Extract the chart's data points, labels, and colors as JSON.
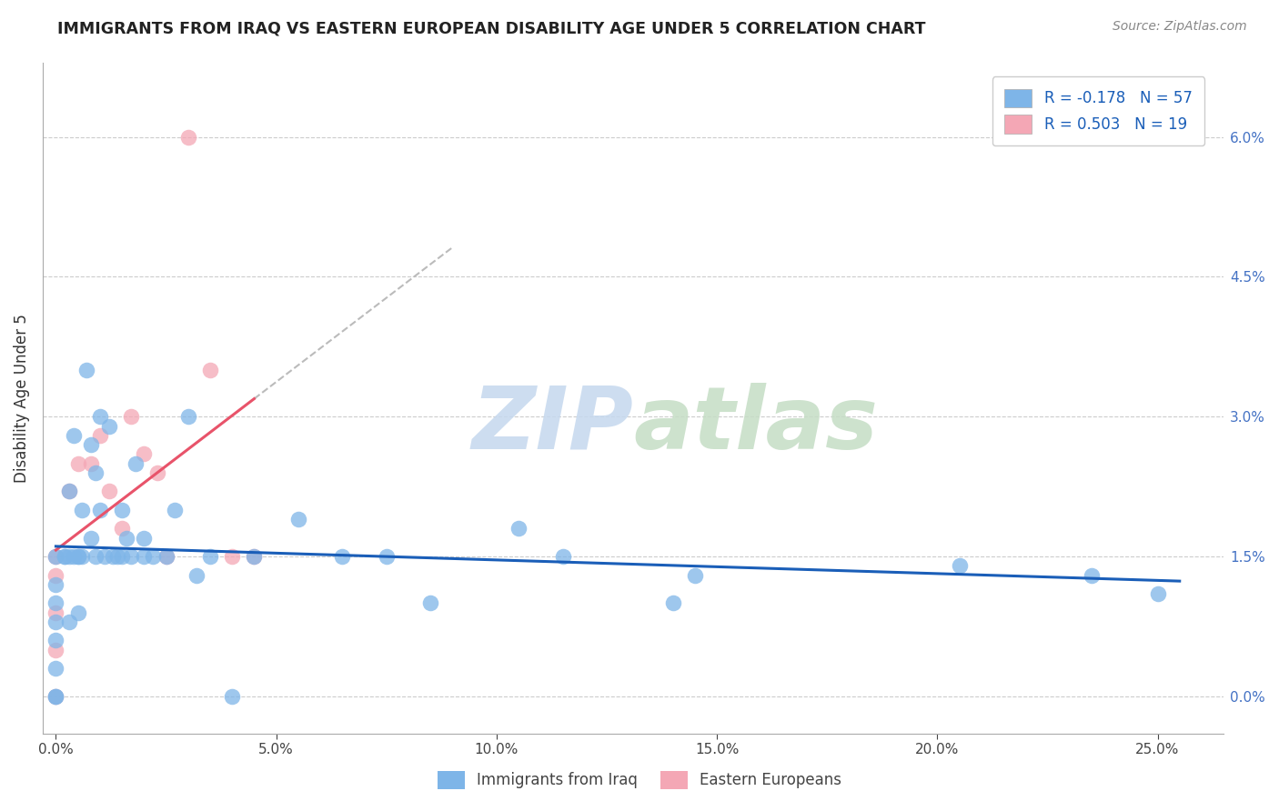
{
  "title": "IMMIGRANTS FROM IRAQ VS EASTERN EUROPEAN DISABILITY AGE UNDER 5 CORRELATION CHART",
  "source": "Source: ZipAtlas.com",
  "xlabel_vals": [
    0.0,
    5.0,
    10.0,
    15.0,
    20.0,
    25.0
  ],
  "ylabel_vals": [
    0.0,
    1.5,
    3.0,
    4.5,
    6.0
  ],
  "ylabel_label": "Disability Age Under 5",
  "xlim": [
    -0.3,
    26.5
  ],
  "ylim": [
    -0.4,
    6.8
  ],
  "iraq_R": -0.178,
  "iraq_N": 57,
  "ee_R": 0.503,
  "ee_N": 19,
  "iraq_color": "#7eb5e8",
  "ee_color": "#f4a7b5",
  "iraq_line_color": "#1a5eb8",
  "ee_line_color": "#e8536a",
  "iraq_x": [
    0.0,
    0.0,
    0.0,
    0.0,
    0.0,
    0.0,
    0.0,
    0.0,
    0.3,
    0.3,
    0.4,
    0.4,
    0.5,
    0.5,
    0.6,
    0.6,
    0.7,
    0.8,
    0.8,
    0.9,
    1.0,
    1.0,
    1.1,
    1.2,
    1.3,
    1.4,
    1.5,
    1.6,
    1.7,
    1.8,
    2.0,
    2.0,
    2.2,
    2.5,
    2.7,
    3.0,
    3.2,
    3.5,
    4.0,
    4.5,
    5.5,
    6.5,
    7.5,
    8.5,
    10.5,
    11.5,
    14.0,
    14.5,
    20.5,
    23.5,
    25.0,
    0.2,
    0.2,
    0.3,
    0.5,
    0.9,
    1.5
  ],
  "iraq_y": [
    0.0,
    0.0,
    0.3,
    0.6,
    0.8,
    1.0,
    1.2,
    1.5,
    0.8,
    2.2,
    1.5,
    2.8,
    0.9,
    1.5,
    1.5,
    2.0,
    3.5,
    2.7,
    1.7,
    2.4,
    2.0,
    3.0,
    1.5,
    2.9,
    1.5,
    1.5,
    2.0,
    1.7,
    1.5,
    2.5,
    1.5,
    1.7,
    1.5,
    1.5,
    2.0,
    3.0,
    1.3,
    1.5,
    0.0,
    1.5,
    1.9,
    1.5,
    1.5,
    1.0,
    1.8,
    1.5,
    1.0,
    1.3,
    1.4,
    1.3,
    1.1,
    1.5,
    1.5,
    1.5,
    1.5,
    1.5,
    1.5
  ],
  "ee_x": [
    0.0,
    0.0,
    0.0,
    0.0,
    0.0,
    0.3,
    0.5,
    0.8,
    1.0,
    1.2,
    1.5,
    1.7,
    2.0,
    2.3,
    2.5,
    3.0,
    3.5,
    4.0,
    4.5
  ],
  "ee_y": [
    0.0,
    0.5,
    0.9,
    1.3,
    1.5,
    2.2,
    2.5,
    2.5,
    2.8,
    2.2,
    1.8,
    3.0,
    2.6,
    2.4,
    1.5,
    6.0,
    3.5,
    1.5,
    1.5
  ],
  "ee_line_x_start": 0.0,
  "ee_line_x_end": 4.5,
  "ee_line_ext_x_end": 9.0,
  "iraq_line_x_start": 0.0,
  "iraq_line_x_end": 25.5
}
